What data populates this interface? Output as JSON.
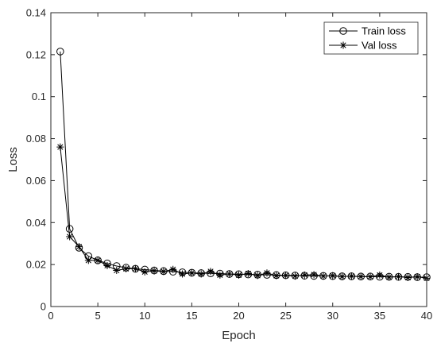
{
  "chart_data": {
    "type": "line",
    "xlabel": "Epoch",
    "ylabel": "Loss",
    "xlim": [
      0,
      40
    ],
    "ylim": [
      0,
      0.14
    ],
    "xticks": [
      0,
      5,
      10,
      15,
      20,
      25,
      30,
      35,
      40
    ],
    "yticks": [
      0,
      0.02,
      0.04,
      0.06,
      0.08,
      0.1,
      0.12,
      0.14
    ],
    "xtick_labels": [
      "0",
      "5",
      "10",
      "15",
      "20",
      "25",
      "30",
      "35",
      "40"
    ],
    "ytick_labels": [
      "0",
      "0.02",
      "0.04",
      "0.06",
      "0.08",
      "0.1",
      "0.12",
      "0.14"
    ],
    "grid": false,
    "legend_position": "top-right",
    "x": [
      1,
      2,
      3,
      4,
      5,
      6,
      7,
      8,
      9,
      10,
      11,
      12,
      13,
      14,
      15,
      16,
      17,
      18,
      19,
      20,
      21,
      22,
      23,
      24,
      25,
      26,
      27,
      28,
      29,
      30,
      31,
      32,
      33,
      34,
      35,
      36,
      37,
      38,
      39,
      40
    ],
    "series": [
      {
        "name": "Train loss",
        "marker": "circle",
        "color": "#000000",
        "values": [
          0.1215,
          0.037,
          0.028,
          0.024,
          0.022,
          0.0205,
          0.0193,
          0.0185,
          0.018,
          0.0176,
          0.0172,
          0.0169,
          0.0166,
          0.0163,
          0.0161,
          0.0159,
          0.0158,
          0.0157,
          0.0155,
          0.0154,
          0.0153,
          0.0152,
          0.0151,
          0.015,
          0.0149,
          0.0148,
          0.0147,
          0.0146,
          0.0146,
          0.0145,
          0.0144,
          0.0144,
          0.0143,
          0.0143,
          0.0142,
          0.0142,
          0.0141,
          0.0141,
          0.014,
          0.014
        ]
      },
      {
        "name": "Val loss",
        "marker": "asterisk",
        "color": "#000000",
        "values": [
          0.076,
          0.0333,
          0.0285,
          0.022,
          0.022,
          0.0195,
          0.0172,
          0.018,
          0.018,
          0.0165,
          0.017,
          0.0167,
          0.0177,
          0.0155,
          0.016,
          0.0155,
          0.0167,
          0.015,
          0.0155,
          0.015,
          0.0157,
          0.0148,
          0.016,
          0.0147,
          0.0148,
          0.0145,
          0.015,
          0.0152,
          0.0145,
          0.0147,
          0.0143,
          0.0145,
          0.0143,
          0.0142,
          0.015,
          0.014,
          0.0143,
          0.0138,
          0.0142,
          0.0135
        ]
      }
    ]
  }
}
